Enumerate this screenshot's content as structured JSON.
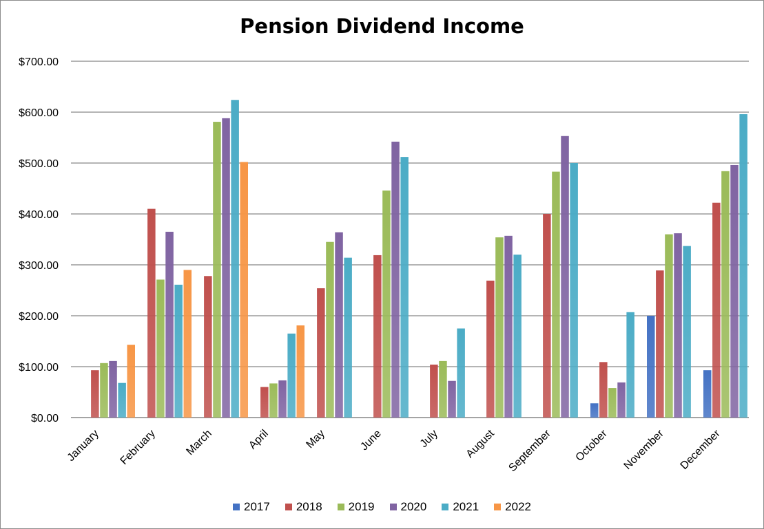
{
  "chart_data": {
    "type": "bar",
    "title": "Pension Dividend Income",
    "xlabel": "",
    "ylabel": "",
    "ylim": [
      0,
      700
    ],
    "ytick_step": 100,
    "y_tick_format": "currency_2dp",
    "grid": true,
    "legend_position": "bottom",
    "categories": [
      "January",
      "February",
      "March",
      "April",
      "May",
      "June",
      "July",
      "August",
      "September",
      "October",
      "November",
      "December"
    ],
    "series": [
      {
        "name": "2017",
        "color": "#4472C4",
        "values": [
          null,
          null,
          null,
          null,
          null,
          null,
          null,
          null,
          null,
          28,
          200,
          93
        ]
      },
      {
        "name": "2018",
        "color": "#C0504D",
        "values": [
          93,
          410,
          278,
          60,
          254,
          319,
          104,
          269,
          400,
          109,
          289,
          422
        ]
      },
      {
        "name": "2019",
        "color": "#9BBB59",
        "values": [
          107,
          271,
          581,
          67,
          345,
          446,
          111,
          354,
          483,
          58,
          360,
          484
        ]
      },
      {
        "name": "2020",
        "color": "#8064A2",
        "values": [
          111,
          365,
          588,
          73,
          364,
          542,
          72,
          357,
          553,
          69,
          362,
          496
        ]
      },
      {
        "name": "2021",
        "color": "#4BACC6",
        "values": [
          68,
          261,
          624,
          165,
          314,
          512,
          175,
          320,
          500,
          207,
          337,
          596
        ]
      },
      {
        "name": "2022",
        "color": "#F79646",
        "values": [
          143,
          290,
          502,
          181,
          null,
          null,
          null,
          null,
          null,
          null,
          null,
          null
        ]
      }
    ]
  }
}
